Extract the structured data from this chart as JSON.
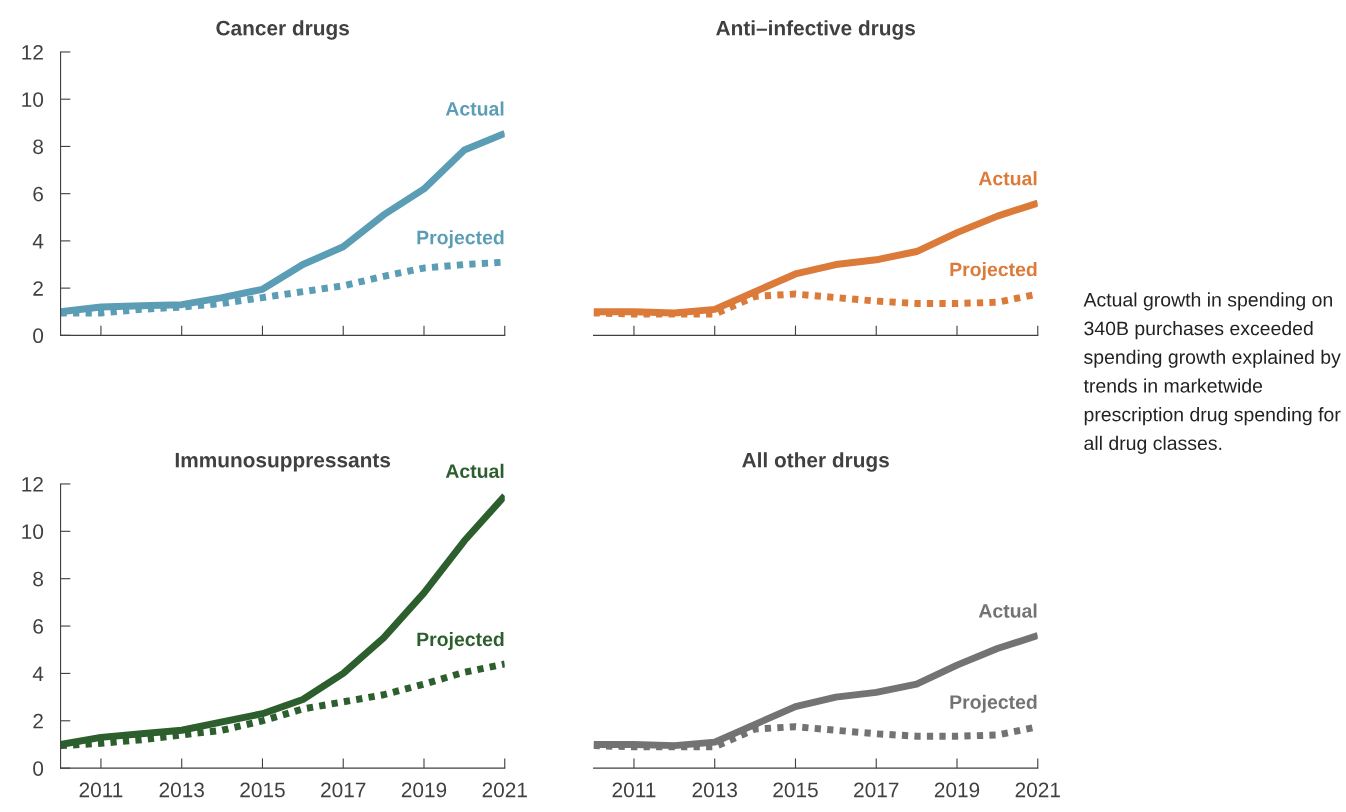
{
  "chart_data": [
    {
      "type": "line",
      "title": "Cancer drugs",
      "x": [
        2010,
        2011,
        2012,
        2013,
        2014,
        2015,
        2016,
        2017,
        2018,
        2019,
        2020,
        2021
      ],
      "xlim": [
        2010,
        2021
      ],
      "xticks": [
        2011,
        2013,
        2015,
        2017,
        2019,
        2021
      ],
      "ylim": [
        0,
        12
      ],
      "yticks": [
        0,
        2,
        4,
        6,
        8,
        10,
        12
      ],
      "tick_labels": "y",
      "legend": false,
      "grid": false,
      "series": [
        {
          "name": "Actual",
          "color": "#5b9db5",
          "line_style": "solid",
          "values": [
            1.0,
            1.2,
            1.25,
            1.3,
            1.6,
            1.95,
            3.0,
            3.75,
            5.1,
            6.2,
            7.85,
            8.55
          ]
        },
        {
          "name": "Projected",
          "color": "#5b9db5",
          "line_style": "dotted",
          "values": [
            0.95,
            0.95,
            1.1,
            1.2,
            1.35,
            1.6,
            1.85,
            2.1,
            2.5,
            2.85,
            3.0,
            3.1
          ]
        }
      ]
    },
    {
      "type": "line",
      "title": "Anti–infective drugs",
      "x": [
        2010,
        2011,
        2012,
        2013,
        2014,
        2015,
        2016,
        2017,
        2018,
        2019,
        2020,
        2021
      ],
      "xlim": [
        2010,
        2021
      ],
      "xticks": [
        2011,
        2013,
        2015,
        2017,
        2019,
        2021
      ],
      "ylim": [
        0,
        12
      ],
      "tick_labels": false,
      "legend": false,
      "grid": false,
      "series": [
        {
          "name": "Actual",
          "color": "#dc7a3a",
          "line_style": "solid",
          "values": [
            1.0,
            1.0,
            0.95,
            1.1,
            1.85,
            2.6,
            3.0,
            3.2,
            3.55,
            4.35,
            5.05,
            5.6
          ]
        },
        {
          "name": "Projected",
          "color": "#dc7a3a",
          "line_style": "dotted",
          "values": [
            0.95,
            0.9,
            0.9,
            0.9,
            1.65,
            1.75,
            1.6,
            1.45,
            1.35,
            1.35,
            1.4,
            1.75
          ]
        }
      ]
    },
    {
      "type": "line",
      "title": "Immunosuppressants",
      "x": [
        2010,
        2011,
        2012,
        2013,
        2014,
        2015,
        2016,
        2017,
        2018,
        2019,
        2020,
        2021
      ],
      "xlim": [
        2010,
        2021
      ],
      "xticks": [
        2011,
        2013,
        2015,
        2017,
        2019,
        2021
      ],
      "ylim": [
        0,
        12
      ],
      "yticks": [
        0,
        2,
        4,
        6,
        8,
        10,
        12
      ],
      "legend": false,
      "grid": false,
      "series": [
        {
          "name": "Actual",
          "color": "#2d5f2e",
          "line_style": "solid",
          "values": [
            1.0,
            1.3,
            1.45,
            1.6,
            1.95,
            2.3,
            2.9,
            4.0,
            5.5,
            7.4,
            9.6,
            11.5
          ]
        },
        {
          "name": "Projected",
          "color": "#2d5f2e",
          "line_style": "dotted",
          "values": [
            0.95,
            1.05,
            1.2,
            1.4,
            1.6,
            2.0,
            2.5,
            2.8,
            3.1,
            3.55,
            4.05,
            4.4
          ]
        }
      ]
    },
    {
      "type": "line",
      "title": "All other drugs",
      "x": [
        2010,
        2011,
        2012,
        2013,
        2014,
        2015,
        2016,
        2017,
        2018,
        2019,
        2020,
        2021
      ],
      "xlim": [
        2010,
        2021
      ],
      "xticks": [
        2011,
        2013,
        2015,
        2017,
        2019,
        2021
      ],
      "ylim": [
        0,
        12
      ],
      "tick_labels": "x",
      "legend": false,
      "grid": false,
      "series": [
        {
          "name": "Actual",
          "color": "#737373",
          "line_style": "solid",
          "values": [
            1.0,
            1.0,
            0.95,
            1.1,
            1.85,
            2.6,
            3.0,
            3.2,
            3.55,
            4.35,
            5.05,
            5.6
          ]
        },
        {
          "name": "Projected",
          "color": "#737373",
          "line_style": "dotted",
          "values": [
            0.95,
            0.9,
            0.9,
            0.9,
            1.65,
            1.75,
            1.6,
            1.45,
            1.35,
            1.35,
            1.4,
            1.75
          ]
        }
      ]
    },
    {
      "type": "other",
      "annotations": [
        "Actual growth in spending on 340B purchases exceeded spending growth explained by trends in marketwide prescription drug spending for all drug classes."
      ]
    }
  ]
}
